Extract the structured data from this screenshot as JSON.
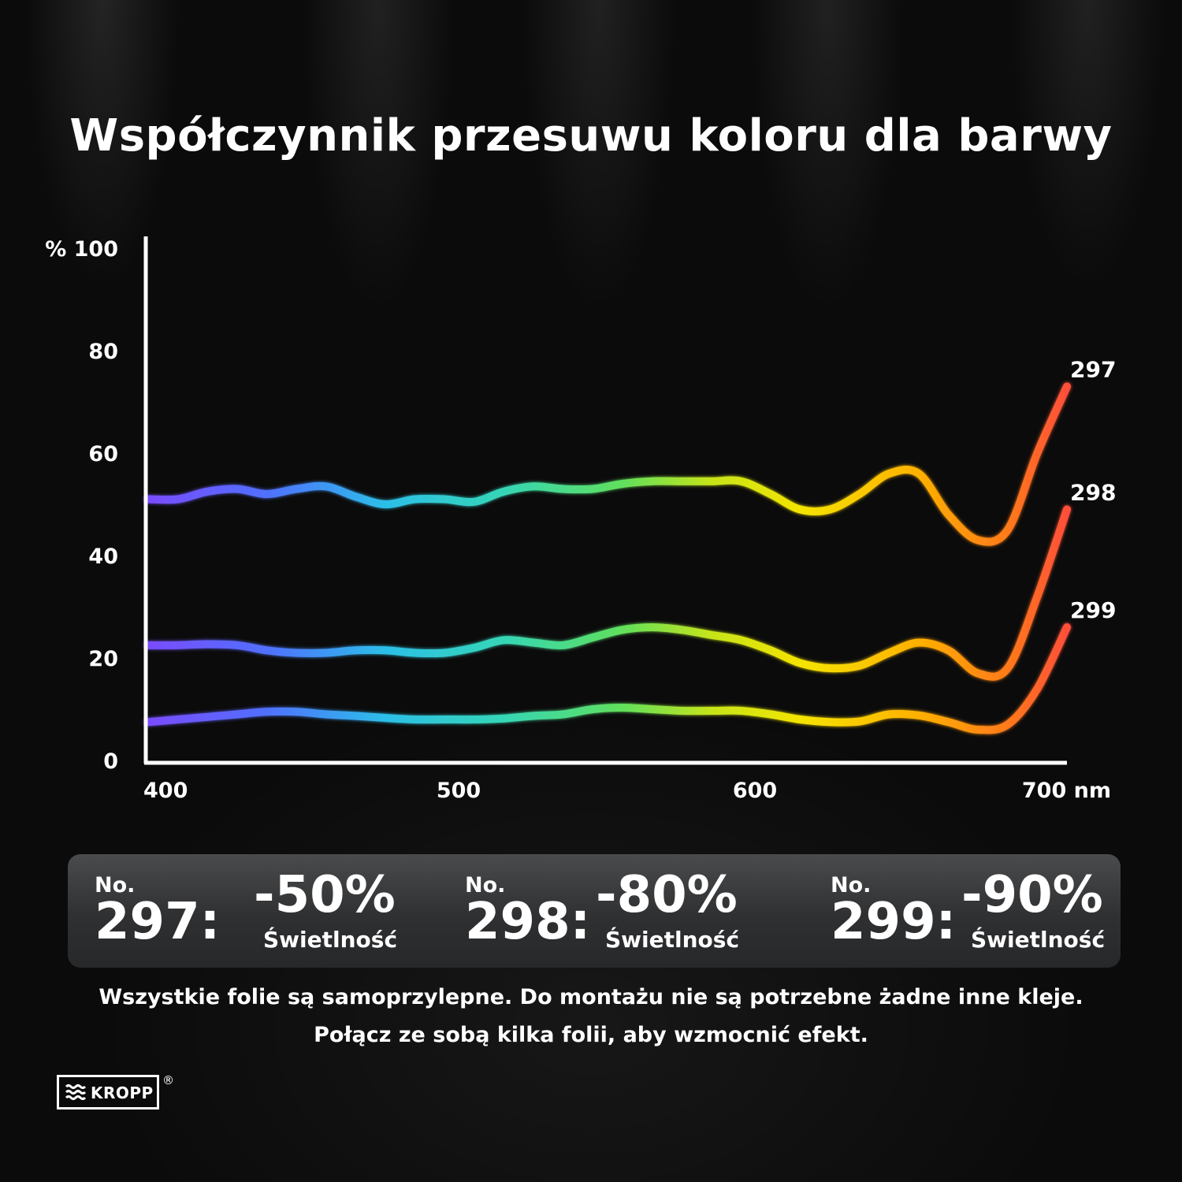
{
  "title": "Współczynnik przesuwu koloru dla barwy",
  "chart_data": {
    "type": "line",
    "title": "Współczynnik przesuwu koloru dla barwy",
    "y_ticks": [
      "0",
      "20",
      "40",
      "60",
      "80",
      "% 100"
    ],
    "x_ticks": [
      "400",
      "500",
      "600",
      "700 nm"
    ],
    "xlim": [
      400,
      710
    ],
    "ylim": [
      0,
      100
    ],
    "grid": false,
    "x": [
      400,
      410,
      420,
      430,
      440,
      450,
      460,
      470,
      480,
      490,
      500,
      510,
      520,
      530,
      540,
      550,
      560,
      570,
      580,
      590,
      600,
      610,
      620,
      630,
      640,
      650,
      660,
      670,
      680,
      690,
      700,
      710
    ],
    "series": [
      {
        "name": "297",
        "values": [
          51,
          51,
          52.5,
          53,
          52,
          53,
          53.5,
          51.5,
          50,
          51,
          51,
          50.5,
          52.5,
          53.5,
          53,
          53,
          54,
          54.5,
          54.5,
          54.5,
          54.5,
          52,
          49,
          49,
          52,
          56,
          56,
          48,
          43,
          45,
          60,
          73
        ]
      },
      {
        "name": "298",
        "values": [
          22.5,
          22.5,
          22.7,
          22.5,
          21.5,
          21,
          21,
          21.5,
          21.5,
          21,
          21,
          22,
          23.5,
          23,
          22.5,
          24,
          25.5,
          26,
          25.5,
          24.5,
          23.5,
          21.5,
          19,
          18,
          18.5,
          21,
          23,
          21.5,
          17,
          18,
          32,
          49
        ]
      },
      {
        "name": "299",
        "values": [
          7.5,
          8,
          8.5,
          9,
          9.5,
          9.5,
          9,
          8.7,
          8.3,
          8,
          8,
          8,
          8.2,
          8.7,
          9,
          10,
          10.3,
          10,
          9.7,
          9.7,
          9.7,
          9,
          8,
          7.5,
          7.6,
          9,
          8.8,
          7.5,
          6,
          7,
          14,
          26
        ]
      }
    ],
    "colors": {
      "gradient": [
        {
          "at": 400,
          "color": "#7a4cff"
        },
        {
          "at": 440,
          "color": "#5070ff"
        },
        {
          "at": 480,
          "color": "#2cbfe8"
        },
        {
          "at": 520,
          "color": "#35d6b6"
        },
        {
          "at": 560,
          "color": "#60e05c"
        },
        {
          "at": 590,
          "color": "#c6e41a"
        },
        {
          "at": 620,
          "color": "#f4e400"
        },
        {
          "at": 660,
          "color": "#ffb000"
        },
        {
          "at": 690,
          "color": "#ff7a1a"
        },
        {
          "at": 710,
          "color": "#ff4f3a"
        }
      ]
    }
  },
  "stats": [
    {
      "no": "No.",
      "num": "297:",
      "pct": "-50%",
      "sub": "Świetlność"
    },
    {
      "no": "No.",
      "num": "298:",
      "pct": "-80%",
      "sub": "Świetlność"
    },
    {
      "no": "No.",
      "num": "299:",
      "pct": "-90%",
      "sub": "Świetlność"
    }
  ],
  "footer": {
    "line1": "Wszystkie folie są samoprzylepne. Do montażu nie są potrzebne żadne inne kleje.",
    "line2": "Połącz ze sobą kilka folii, aby wzmocnić efekt."
  },
  "logo": {
    "text": "KROPP",
    "reg": "®",
    "icon": "waves-icon"
  }
}
